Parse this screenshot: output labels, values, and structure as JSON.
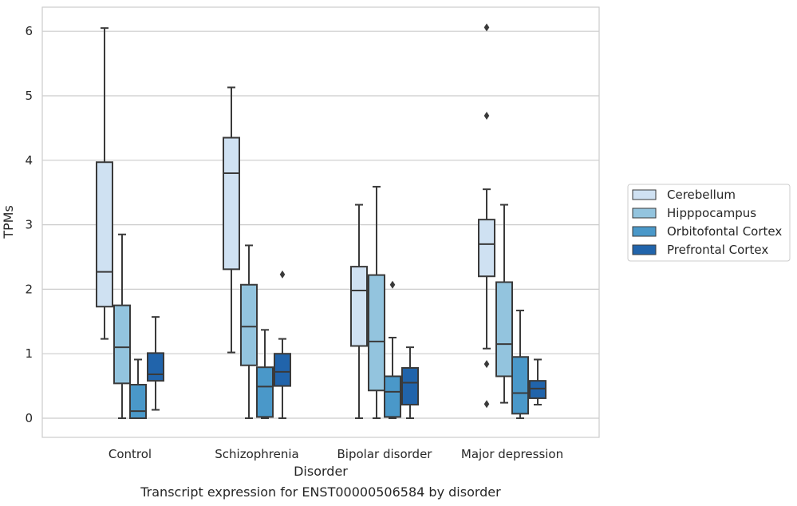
{
  "chart_data": {
    "type": "box",
    "xlabel": "Disorder",
    "ylabel": "TPMs",
    "caption": "Transcript expression for ENST00000506584 by disorder",
    "categories": [
      "Control",
      "Schizophrenia",
      "Bipolar disorder",
      "Major depression"
    ],
    "yticks": [
      0,
      1,
      2,
      3,
      4,
      5,
      6
    ],
    "ylim": [
      -0.3,
      6.35
    ],
    "grid": "horizontal",
    "legend_position": "right",
    "series": [
      {
        "name": "Cerebellum",
        "color": "#cfe1f2",
        "boxes": [
          {
            "whislo": 1.23,
            "q1": 1.73,
            "med": 2.27,
            "q3": 3.97,
            "whishi": 6.05,
            "fliers": []
          },
          {
            "whislo": 1.02,
            "q1": 2.31,
            "med": 3.8,
            "q3": 4.35,
            "whishi": 5.13,
            "fliers": []
          },
          {
            "whislo": 0.0,
            "q1": 1.12,
            "med": 1.98,
            "q3": 2.35,
            "whishi": 3.31,
            "fliers": []
          },
          {
            "whislo": 1.08,
            "q1": 2.2,
            "med": 2.7,
            "q3": 3.08,
            "whishi": 3.55,
            "fliers": [
              0.22,
              0.84,
              4.69,
              6.06
            ]
          }
        ]
      },
      {
        "name": "Hipppocampus",
        "color": "#93c4de",
        "boxes": [
          {
            "whislo": 0.0,
            "q1": 0.54,
            "med": 1.1,
            "q3": 1.75,
            "whishi": 2.85,
            "fliers": []
          },
          {
            "whislo": 0.0,
            "q1": 0.82,
            "med": 1.42,
            "q3": 2.07,
            "whishi": 2.68,
            "fliers": []
          },
          {
            "whislo": 0.0,
            "q1": 0.43,
            "med": 1.19,
            "q3": 2.22,
            "whishi": 3.59,
            "fliers": []
          },
          {
            "whislo": 0.24,
            "q1": 0.65,
            "med": 1.15,
            "q3": 2.11,
            "whishi": 3.31,
            "fliers": []
          }
        ]
      },
      {
        "name": "Orbitofontal Cortex",
        "color": "#4a98c9",
        "boxes": [
          {
            "whislo": 0.0,
            "q1": 0.0,
            "med": 0.11,
            "q3": 0.52,
            "whishi": 0.91,
            "fliers": []
          },
          {
            "whislo": 0.0,
            "q1": 0.02,
            "med": 0.49,
            "q3": 0.79,
            "whishi": 1.37,
            "fliers": []
          },
          {
            "whislo": 0.0,
            "q1": 0.02,
            "med": 0.41,
            "q3": 0.65,
            "whishi": 1.25,
            "fliers": [
              2.07
            ]
          },
          {
            "whislo": 0.0,
            "q1": 0.07,
            "med": 0.39,
            "q3": 0.95,
            "whishi": 1.67,
            "fliers": []
          }
        ]
      },
      {
        "name": "Prefrontal Cortex",
        "color": "#2164ab",
        "boxes": [
          {
            "whislo": 0.13,
            "q1": 0.58,
            "med": 0.68,
            "q3": 1.01,
            "whishi": 1.57,
            "fliers": []
          },
          {
            "whislo": 0.0,
            "q1": 0.5,
            "med": 0.72,
            "q3": 1.0,
            "whishi": 1.23,
            "fliers": [
              2.23
            ]
          },
          {
            "whislo": 0.0,
            "q1": 0.21,
            "med": 0.55,
            "q3": 0.78,
            "whishi": 1.1,
            "fliers": []
          },
          {
            "whislo": 0.21,
            "q1": 0.31,
            "med": 0.46,
            "q3": 0.58,
            "whishi": 0.91,
            "fliers": []
          }
        ]
      }
    ]
  }
}
